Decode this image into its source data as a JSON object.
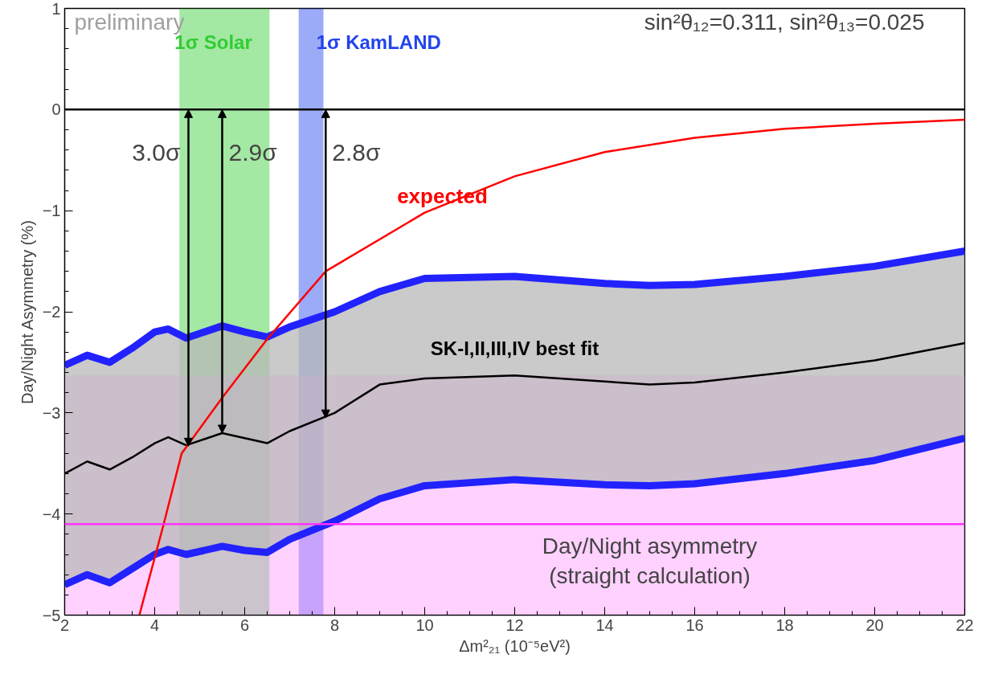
{
  "chart_data": {
    "type": "line",
    "xlabel": "Δm²₂₁ (10⁻⁵eV²)",
    "ylabel": "Day/Night Asymmetry (%)",
    "xlim": [
      2,
      22
    ],
    "ylim": [
      -5,
      1
    ],
    "xticks": [
      2,
      4,
      6,
      8,
      10,
      12,
      14,
      16,
      18,
      20,
      22
    ],
    "yticks": [
      -5,
      -4,
      -3,
      -2,
      -1,
      0,
      1
    ],
    "grid": false,
    "legend": false,
    "marker": "none",
    "line_style": "solid",
    "series": [
      {
        "color": "#2222ff",
        "x": [
          2,
          2.5,
          3,
          3.5,
          4,
          4.3,
          4.7,
          5.5,
          6,
          6.5,
          7,
          8,
          9,
          10,
          12,
          14,
          15,
          16,
          18,
          20,
          22
        ],
        "values": [
          -2.53,
          -2.43,
          -2.5,
          -2.36,
          -2.2,
          -2.17,
          -2.26,
          -2.14,
          -2.2,
          -2.25,
          -2.15,
          -2.0,
          -1.8,
          -1.67,
          -1.65,
          -1.72,
          -1.74,
          -1.73,
          -1.65,
          -1.55,
          -1.4
        ]
      },
      {
        "color": "#2222ff",
        "x": [
          2,
          2.5,
          3,
          3.5,
          4,
          4.3,
          4.7,
          5.5,
          6,
          6.5,
          7,
          8,
          9,
          10,
          12,
          14,
          15,
          16,
          18,
          20,
          22
        ],
        "values": [
          -4.7,
          -4.6,
          -4.68,
          -4.54,
          -4.4,
          -4.35,
          -4.4,
          -4.32,
          -4.36,
          -4.38,
          -4.25,
          -4.07,
          -3.85,
          -3.72,
          -3.66,
          -3.71,
          -3.72,
          -3.7,
          -3.6,
          -3.47,
          -3.25
        ]
      },
      {
        "name": "SK-I,II,III,IV best fit",
        "color": "#000000",
        "x": [
          2,
          2.5,
          3,
          3.5,
          4,
          4.3,
          4.7,
          5.5,
          6,
          6.5,
          7,
          8,
          9,
          10,
          12,
          14,
          15,
          16,
          18,
          20,
          22
        ],
        "values": [
          -3.6,
          -3.48,
          -3.56,
          -3.44,
          -3.3,
          -3.24,
          -3.32,
          -3.2,
          -3.25,
          -3.3,
          -3.18,
          -3.0,
          -2.72,
          -2.66,
          -2.63,
          -2.69,
          -2.72,
          -2.7,
          -2.6,
          -2.48,
          -2.31
        ],
        "upper": [
          -2.53,
          -2.43,
          -2.5,
          -2.36,
          -2.2,
          -2.17,
          -2.26,
          -2.14,
          -2.2,
          -2.25,
          -2.15,
          -2.0,
          -1.8,
          -1.67,
          -1.65,
          -1.72,
          -1.74,
          -1.73,
          -1.65,
          -1.55,
          -1.4
        ],
        "lower": [
          -4.7,
          -4.6,
          -4.68,
          -4.54,
          -4.4,
          -4.35,
          -4.4,
          -4.32,
          -4.36,
          -4.38,
          -4.25,
          -4.07,
          -3.85,
          -3.72,
          -3.66,
          -3.71,
          -3.72,
          -3.7,
          -3.6,
          -3.47,
          -3.25
        ]
      },
      {
        "name": "expected",
        "color": "#ff0000",
        "x": [
          3.66,
          4.2,
          4.6,
          5.5,
          6.5,
          7.8,
          10,
          12,
          14,
          16,
          18,
          20,
          22
        ],
        "values": [
          -5,
          -4.1,
          -3.4,
          -2.85,
          -2.27,
          -1.6,
          -1.02,
          -0.66,
          -0.42,
          -0.28,
          -0.19,
          -0.14,
          -0.1
        ]
      }
    ],
    "bands": [
      {
        "axis": "x",
        "from": 4.55,
        "to": 6.55,
        "label": "1σ Solar",
        "color": "#33cc33"
      },
      {
        "axis": "x",
        "from": 7.2,
        "to": 7.75,
        "label": "1σ KamLAND",
        "color": "#2244ee"
      },
      {
        "axis": "y",
        "from": -5,
        "to": -2.63,
        "color": "#ff99ff"
      }
    ],
    "ref_lines": [
      {
        "axis": "y",
        "value": 0,
        "color": "#000000"
      },
      {
        "axis": "y",
        "value": -4.1,
        "color": "#ff33ff",
        "label": "Day/Night asymmetry\n(straight calculation)"
      }
    ],
    "annotations": [
      "preliminary",
      "sin²θ₁₂=0.311, sin²θ₁₃=0.025",
      {
        "text": "3.0σ",
        "x": 4.75,
        "y": -3.33
      },
      {
        "text": "2.9σ",
        "x": 5.5,
        "y": -3.2
      },
      {
        "text": "2.8σ",
        "x": 7.8,
        "y": -3.05
      }
    ]
  }
}
